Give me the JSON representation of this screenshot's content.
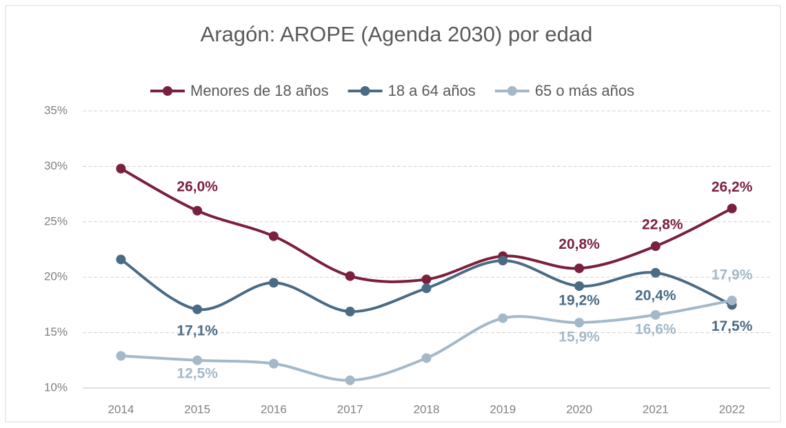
{
  "chart_data": {
    "type": "line",
    "title": "Aragón: AROPE (Agenda 2030) por edad",
    "categories": [
      "2014",
      "2015",
      "2016",
      "2017",
      "2018",
      "2019",
      "2020",
      "2021",
      "2022"
    ],
    "series": [
      {
        "name": "Menores de 18 años",
        "color": "#7b1f3f",
        "values": [
          29.8,
          26.0,
          23.7,
          20.1,
          19.8,
          21.9,
          20.8,
          22.8,
          26.2
        ],
        "value_labels": [
          null,
          "26,0%",
          null,
          null,
          null,
          null,
          "20,8%",
          "22,8%",
          "26,2%"
        ]
      },
      {
        "name": "18 a 64 años",
        "color": "#4a6b85",
        "values": [
          21.6,
          17.1,
          19.5,
          16.9,
          19.0,
          21.5,
          19.2,
          20.4,
          17.5
        ],
        "value_labels": [
          null,
          "17,1%",
          null,
          null,
          null,
          null,
          "19,2%",
          "20,4%",
          "17,5%"
        ]
      },
      {
        "name": "65 o más años",
        "color": "#a3b9c9",
        "values": [
          12.9,
          12.5,
          12.2,
          10.7,
          12.7,
          16.3,
          15.9,
          16.6,
          17.9
        ],
        "value_labels": [
          null,
          "12,5%",
          null,
          null,
          null,
          null,
          "15,9%",
          "16,6%",
          "17,9%"
        ]
      }
    ],
    "ylim": [
      10,
      35
    ],
    "yticks": [
      {
        "value": 10,
        "label": "10%"
      },
      {
        "value": 15,
        "label": "15%"
      },
      {
        "value": 20,
        "label": "20%"
      },
      {
        "value": 25,
        "label": "25%"
      },
      {
        "value": 30,
        "label": "30%"
      },
      {
        "value": 35,
        "label": "35%"
      }
    ],
    "grid": true,
    "legend": "top"
  }
}
